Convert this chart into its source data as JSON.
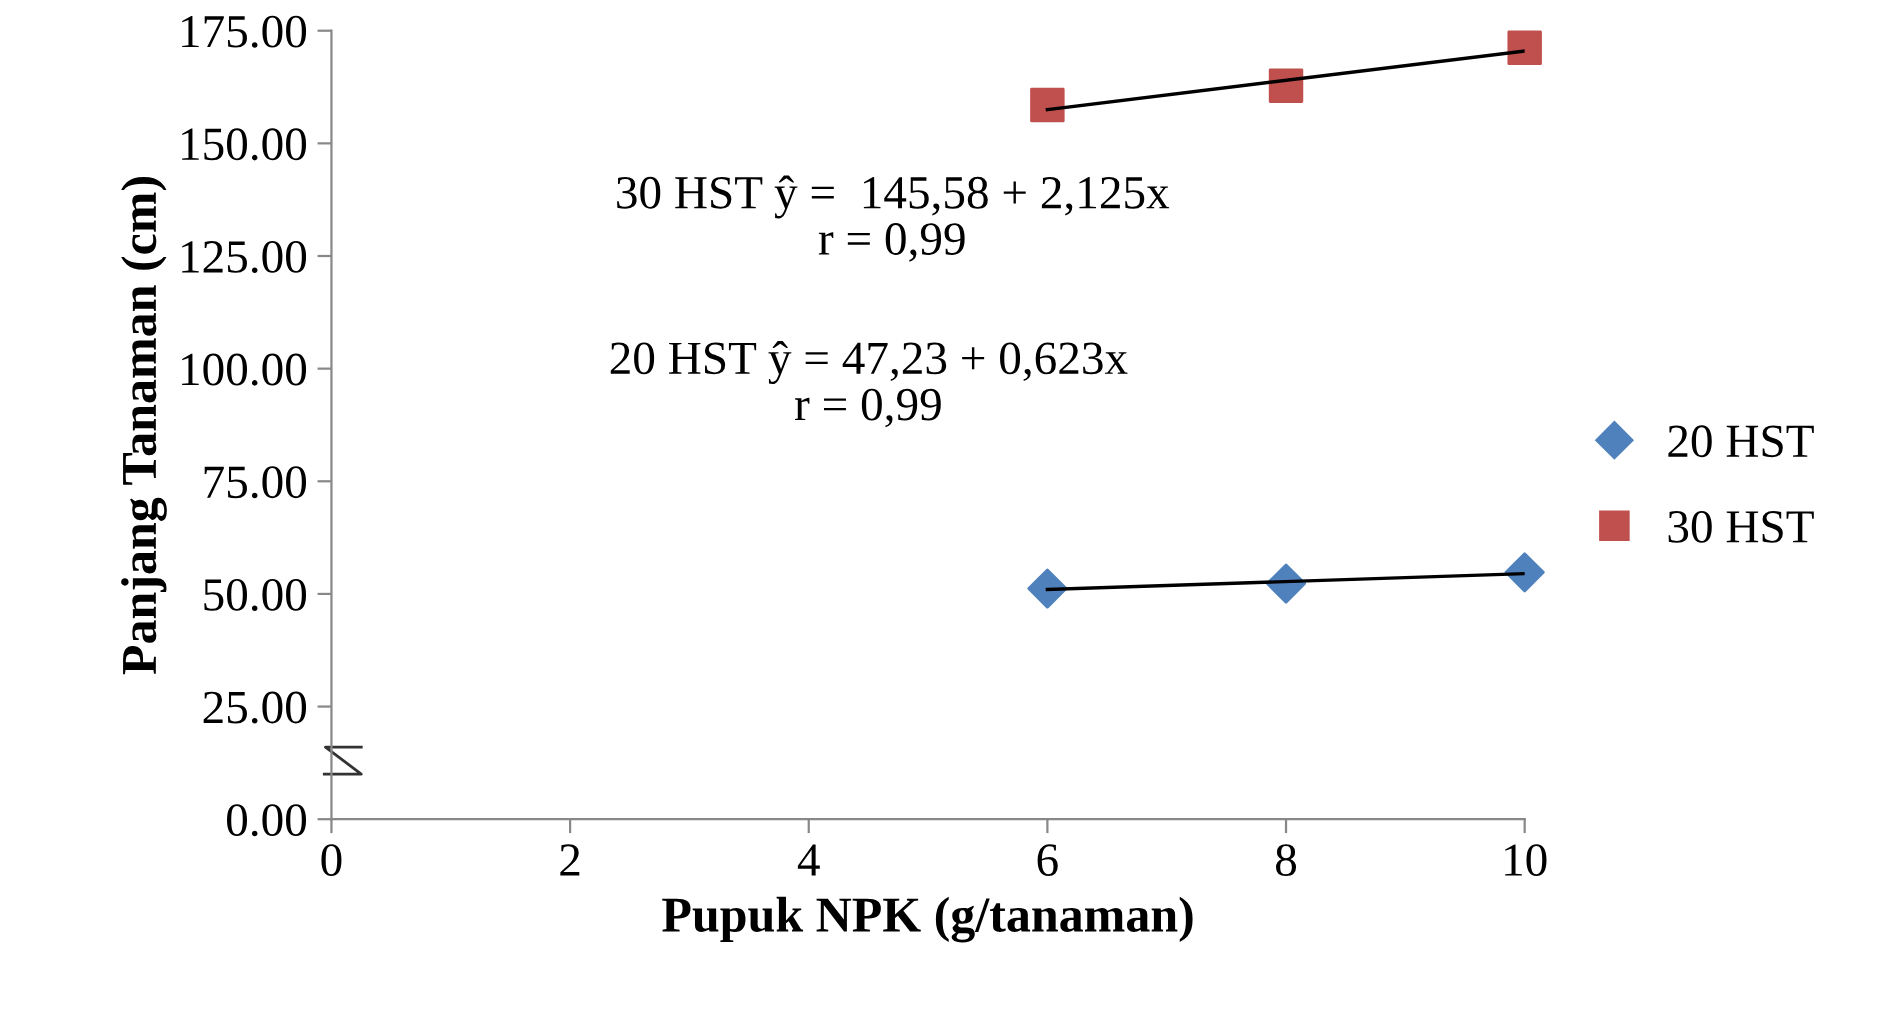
{
  "chart_data": {
    "type": "scatter",
    "xlabel": "Pupuk NPK (g/tanaman)",
    "ylabel": "Panjang Tanaman (cm)",
    "xlim": [
      0,
      10
    ],
    "xticks": [
      0,
      2,
      4,
      6,
      8,
      10
    ],
    "ylim": [
      0,
      175
    ],
    "yticks": [
      {
        "value": 0,
        "label": "0.00"
      },
      {
        "value": 25,
        "label": "25.00"
      },
      {
        "value": 50,
        "label": "50.00"
      },
      {
        "value": 75,
        "label": "75.00"
      },
      {
        "value": 100,
        "label": "100.00"
      },
      {
        "value": 125,
        "label": "125.00"
      },
      {
        "value": 150,
        "label": "150.00"
      },
      {
        "value": 175,
        "label": "175.00"
      }
    ],
    "grid": false,
    "legend": "right",
    "series": [
      {
        "name": "20 HST",
        "marker": "diamond",
        "color": "#4f81bd",
        "x": [
          6,
          8,
          10
        ],
        "values": [
          51.2,
          52.3,
          54.8
        ]
      },
      {
        "name": "30 HST",
        "marker": "square",
        "color": "#c0504d",
        "x": [
          6,
          8,
          10
        ],
        "values": [
          158.5,
          162.8,
          171.2
        ]
      },
      {
        "type": "line",
        "marker": "none",
        "color": "#000000",
        "x": [
          6,
          10
        ],
        "values": [
          51.0,
          54.5
        ]
      },
      {
        "type": "line",
        "marker": "none",
        "color": "#000000",
        "x": [
          6,
          10
        ],
        "values": [
          157.5,
          170.5
        ]
      }
    ],
    "annotations": [
      "30 HST ŷ =  145,58 + 2,125x\nr = 0,99",
      "20 HST ŷ = 47,23 + 0,623x\nr = 0,99"
    ]
  }
}
